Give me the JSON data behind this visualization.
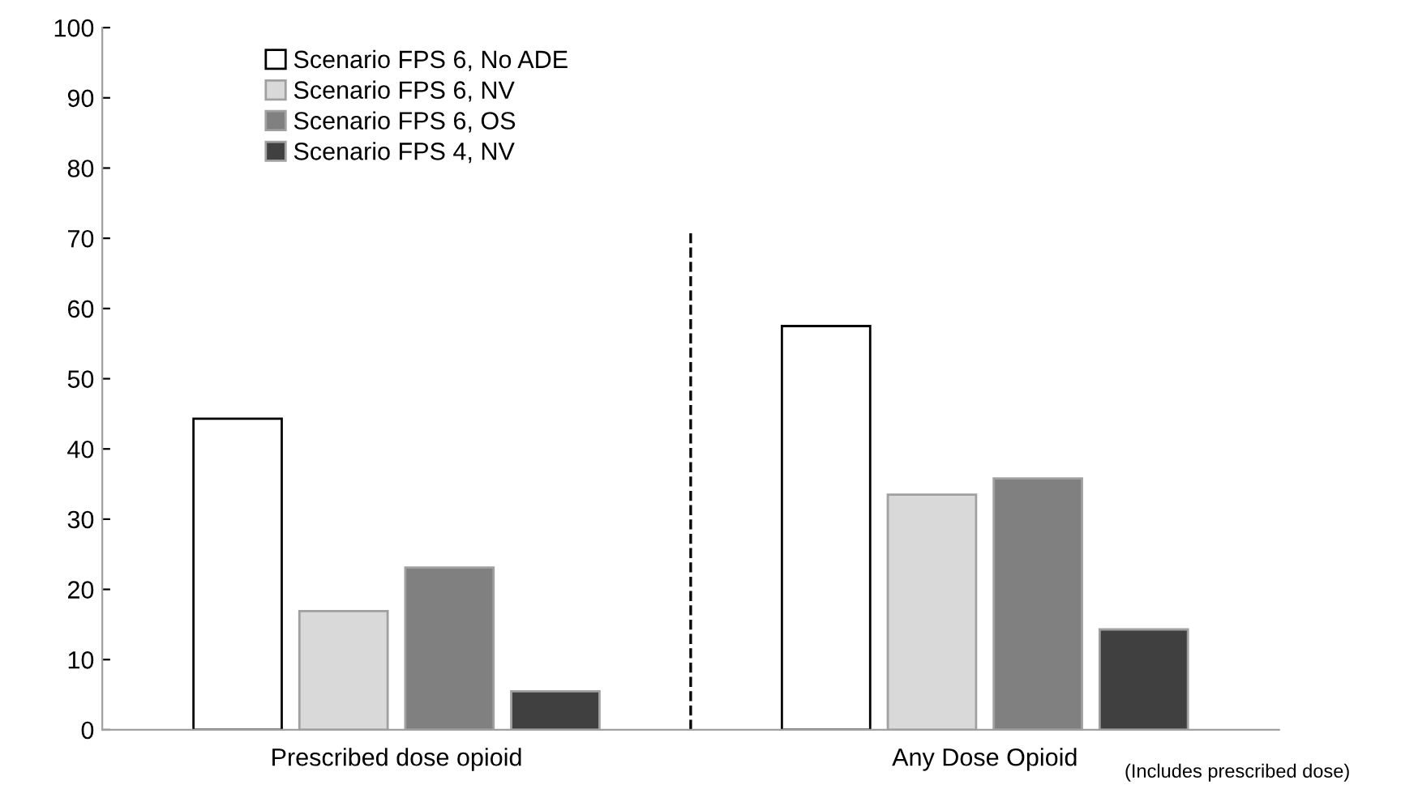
{
  "chart_data": {
    "type": "bar",
    "categories": [
      "Prescribed dose opioid",
      "Any Dose Opioid"
    ],
    "series": [
      {
        "name": "Scenario FPS 6, No ADE",
        "color": "#ffffff",
        "values": [
          44.3,
          57.5
        ]
      },
      {
        "name": "Scenario FPS 6, NV",
        "color": "#d9d9d9",
        "values": [
          16.9,
          33.5
        ]
      },
      {
        "name": "Scenario FPS 6, OS",
        "color": "#808080",
        "values": [
          23.1,
          35.8
        ]
      },
      {
        "name": "Scenario FPS 4, NV",
        "color": "#404040",
        "values": [
          5.5,
          14.3
        ]
      }
    ],
    "ylim": [
      0,
      100
    ],
    "yticks": [
      0,
      10,
      20,
      30,
      40,
      50,
      60,
      70,
      80,
      90,
      100
    ],
    "grid": false,
    "legend": "top left",
    "annotations": [
      "(Includes prescribed dose)"
    ]
  }
}
